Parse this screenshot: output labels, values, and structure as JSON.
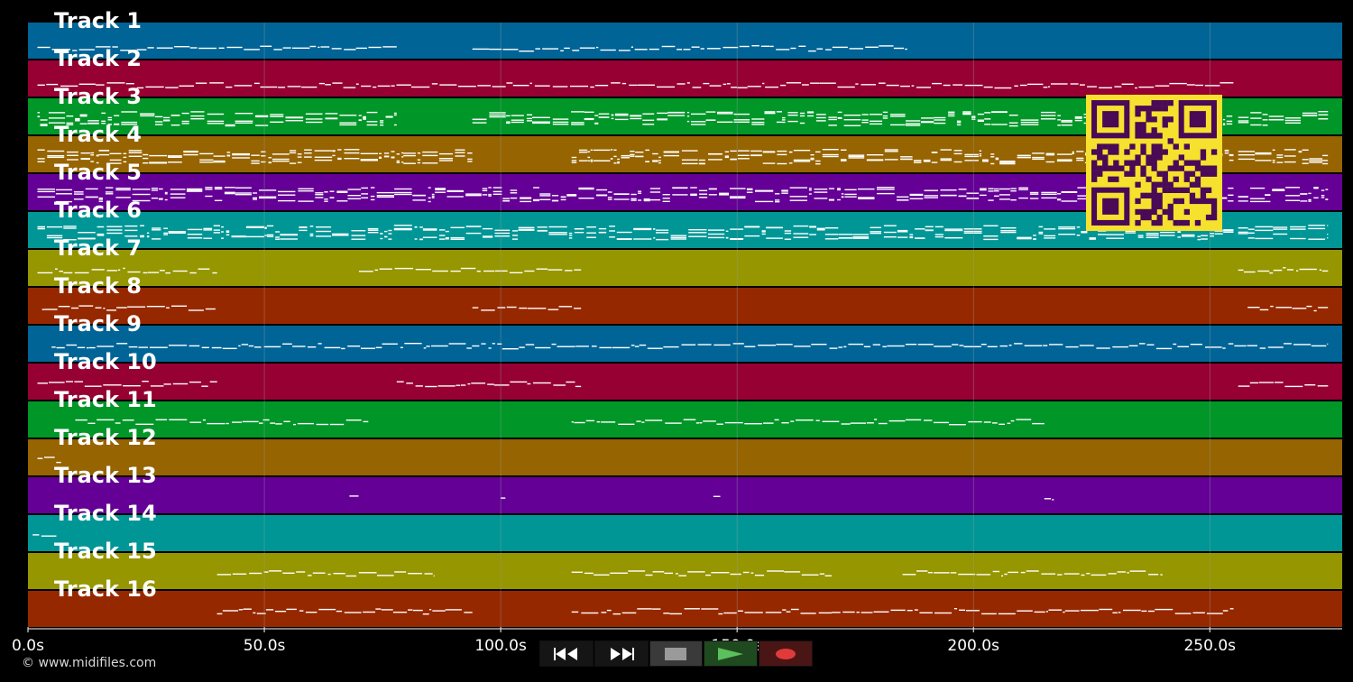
{
  "app": {
    "copyright": "© www.midifiles.com"
  },
  "colors": {
    "background": "#000000",
    "note": "#ffffff",
    "grid": "#9aa0a0",
    "qr_fg": "#4a0a55",
    "qr_bg": "#f5e12e"
  },
  "tracks": [
    {
      "label": "Track 1",
      "color": "#006496"
    },
    {
      "label": "Track 2",
      "color": "#960032"
    },
    {
      "label": "Track 3",
      "color": "#009628"
    },
    {
      "label": "Track 4",
      "color": "#966400"
    },
    {
      "label": "Track 5",
      "color": "#640096"
    },
    {
      "label": "Track 6",
      "color": "#009696"
    },
    {
      "label": "Track 7",
      "color": "#969600"
    },
    {
      "label": "Track 8",
      "color": "#962800"
    },
    {
      "label": "Track 9",
      "color": "#006496"
    },
    {
      "label": "Track 10",
      "color": "#960032"
    },
    {
      "label": "Track 11",
      "color": "#009628"
    },
    {
      "label": "Track 12",
      "color": "#966400"
    },
    {
      "label": "Track 13",
      "color": "#640096"
    },
    {
      "label": "Track 14",
      "color": "#009696"
    },
    {
      "label": "Track 15",
      "color": "#969600"
    },
    {
      "label": "Track 16",
      "color": "#962800"
    }
  ],
  "timeline": {
    "unit": "s",
    "max_seconds": 278,
    "ticks": [
      {
        "value": 0,
        "label": "0.0s"
      },
      {
        "value": 50,
        "label": "50.0s"
      },
      {
        "value": 100,
        "label": "100.0s"
      },
      {
        "value": 150,
        "label": "150.0s"
      },
      {
        "value": 200,
        "label": "200.0s"
      },
      {
        "value": 250,
        "label": "250.0s"
      }
    ]
  },
  "note_segments": [
    [
      [
        2,
        78
      ],
      [
        94,
        186
      ]
    ],
    [
      [
        2,
        255
      ]
    ],
    [
      [
        2,
        78
      ],
      [
        94,
        255
      ],
      [
        256,
        275
      ]
    ],
    [
      [
        2,
        94
      ],
      [
        115,
        255
      ],
      [
        256,
        275
      ]
    ],
    [
      [
        2,
        255
      ],
      [
        256,
        275
      ]
    ],
    [
      [
        2,
        255
      ],
      [
        256,
        275
      ]
    ],
    [
      [
        2,
        40
      ],
      [
        70,
        117
      ],
      [
        256,
        275
      ]
    ],
    [
      [
        3,
        40
      ],
      [
        94,
        117
      ],
      [
        258,
        275
      ]
    ],
    [
      [
        5,
        275
      ]
    ],
    [
      [
        2,
        40
      ],
      [
        78,
        117
      ],
      [
        256,
        275
      ]
    ],
    [
      [
        10,
        72
      ],
      [
        115,
        215
      ]
    ],
    [
      [
        2,
        7
      ]
    ],
    [
      [
        68,
        70
      ],
      [
        100,
        101
      ],
      [
        145,
        147
      ],
      [
        215,
        217
      ]
    ],
    [
      [
        1,
        6
      ]
    ],
    [
      [
        40,
        86
      ],
      [
        115,
        170
      ],
      [
        185,
        240
      ]
    ],
    [
      [
        40,
        94
      ],
      [
        115,
        255
      ]
    ]
  ],
  "transport": {
    "rewind": "rewind-icon",
    "forward": "fast-forward-icon",
    "stop": "stop-icon",
    "play": "play-icon",
    "record": "record-icon"
  }
}
